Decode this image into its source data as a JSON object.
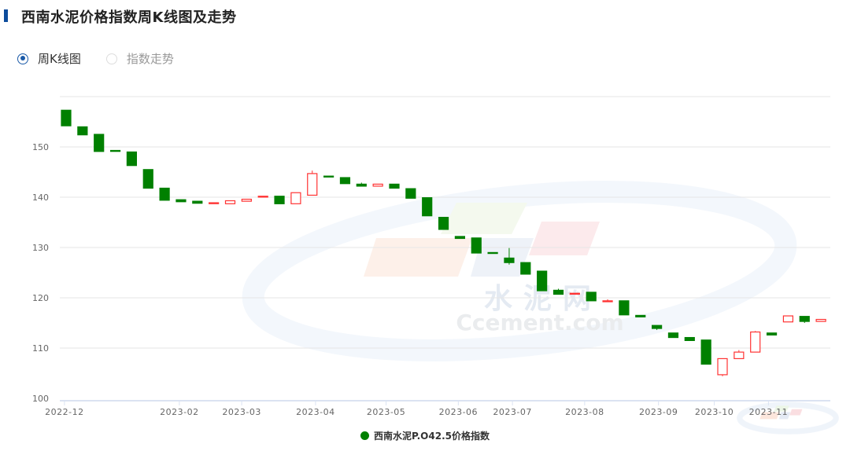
{
  "header": {
    "title": "西南水泥价格指数周K线图及走势"
  },
  "view_options": [
    {
      "label": "周K线图",
      "selected": true
    },
    {
      "label": "指数走势",
      "selected": false
    }
  ],
  "watermark": {
    "cn": "水泥网",
    "en": "Ccement.com"
  },
  "colors": {
    "up": "#ff3333",
    "down": "#008000",
    "accent": "#1a5aa8"
  },
  "chart_data": {
    "type": "candlestick",
    "title": "",
    "ylim": [
      100,
      160
    ],
    "yticks": [
      100,
      110,
      120,
      130,
      140,
      150
    ],
    "xticks": [
      "2022-12",
      "2023-02",
      "2023-03",
      "2023-04",
      "2023-05",
      "2023-06",
      "2023-07",
      "2023-08",
      "2023-09",
      "2023-10",
      "2023-11"
    ],
    "grid": true,
    "legend_position": "bottom",
    "series": [
      {
        "name": "西南水泥P.O42.5价格指数",
        "ohlc": [
          [
            157.3,
            154.2,
            157.3,
            154.2
          ],
          [
            154.0,
            152.4,
            154.0,
            152.4
          ],
          [
            152.5,
            149.1,
            152.5,
            149.1
          ],
          [
            149.3,
            149.2,
            149.3,
            149.2
          ],
          [
            149.0,
            146.3,
            149.0,
            146.3
          ],
          [
            145.5,
            141.8,
            145.5,
            141.8
          ],
          [
            141.8,
            139.4,
            141.8,
            139.4
          ],
          [
            139.5,
            139.1,
            139.5,
            139.1
          ],
          [
            139.2,
            138.8,
            139.2,
            138.8
          ],
          [
            138.8,
            138.9,
            138.9,
            138.8
          ],
          [
            138.7,
            139.3,
            139.3,
            138.7
          ],
          [
            139.2,
            139.6,
            139.6,
            139.2
          ],
          [
            140.1,
            140.2,
            140.2,
            140.1
          ],
          [
            140.2,
            138.7,
            140.2,
            138.7
          ],
          [
            138.7,
            140.9,
            140.9,
            138.7
          ],
          [
            140.4,
            144.7,
            145.3,
            140.4
          ],
          [
            144.2,
            144.1,
            144.2,
            144.1
          ],
          [
            143.9,
            142.7,
            143.9,
            142.7
          ],
          [
            142.6,
            142.2,
            142.9,
            142.2
          ],
          [
            142.2,
            142.6,
            142.6,
            142.2
          ],
          [
            142.6,
            141.8,
            142.6,
            141.8
          ],
          [
            141.7,
            139.8,
            141.7,
            139.8
          ],
          [
            139.9,
            136.3,
            139.9,
            136.3
          ],
          [
            136.0,
            133.6,
            136.0,
            133.6
          ],
          [
            132.2,
            131.8,
            132.2,
            131.8
          ],
          [
            131.9,
            128.9,
            131.9,
            128.9
          ],
          [
            129.0,
            128.9,
            129.0,
            128.9
          ],
          [
            127.9,
            127.0,
            129.9,
            126.6
          ],
          [
            127.0,
            124.7,
            127.0,
            124.7
          ],
          [
            125.3,
            121.4,
            125.3,
            121.4
          ],
          [
            121.5,
            120.7,
            121.8,
            120.7
          ],
          [
            120.8,
            120.9,
            120.9,
            120.8
          ],
          [
            121.1,
            119.4,
            121.1,
            119.4
          ],
          [
            119.3,
            119.4,
            119.7,
            119.3
          ],
          [
            119.4,
            116.6,
            119.4,
            116.6
          ],
          [
            116.5,
            116.2,
            116.5,
            116.2
          ],
          [
            114.5,
            113.9,
            114.5,
            113.6
          ],
          [
            113.0,
            112.1,
            113.0,
            112.1
          ],
          [
            112.1,
            111.5,
            112.1,
            111.5
          ],
          [
            111.6,
            106.8,
            111.6,
            106.8
          ],
          [
            104.7,
            107.9,
            107.9,
            104.4
          ],
          [
            107.9,
            109.2,
            109.6,
            107.9
          ],
          [
            109.2,
            113.2,
            113.4,
            109.2
          ],
          [
            113.0,
            112.6,
            113.0,
            112.6
          ],
          [
            115.2,
            116.4,
            116.4,
            115.2
          ],
          [
            116.3,
            115.3,
            116.3,
            115.0
          ],
          [
            115.3,
            115.7,
            115.7,
            115.3
          ]
        ]
      }
    ]
  }
}
